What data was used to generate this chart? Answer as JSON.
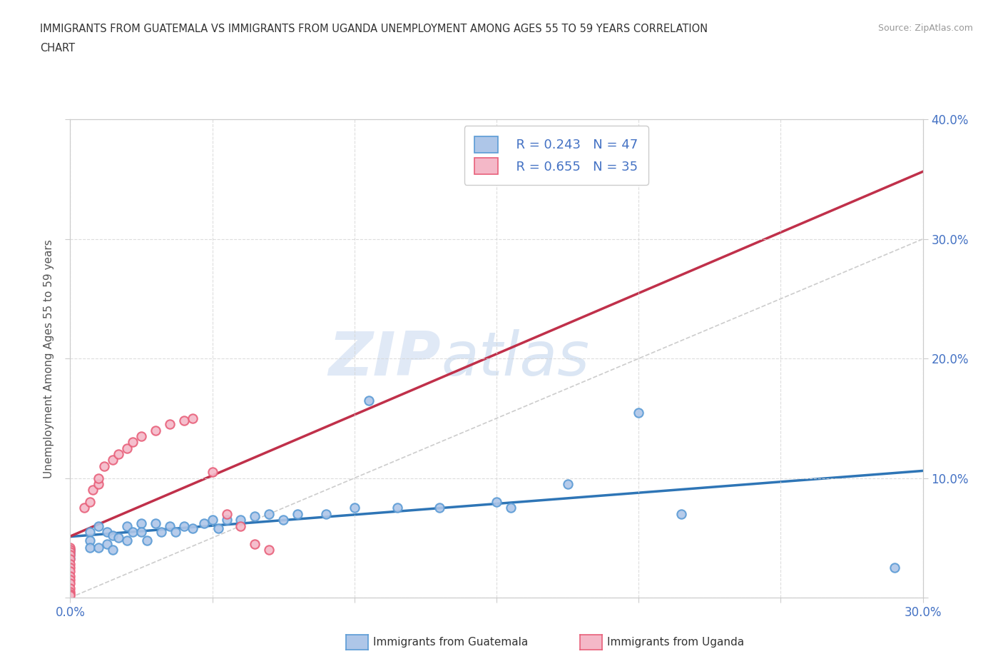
{
  "title_line1": "IMMIGRANTS FROM GUATEMALA VS IMMIGRANTS FROM UGANDA UNEMPLOYMENT AMONG AGES 55 TO 59 YEARS CORRELATION",
  "title_line2": "CHART",
  "source": "Source: ZipAtlas.com",
  "ylabel": "Unemployment Among Ages 55 to 59 years",
  "xlim": [
    0.0,
    0.3
  ],
  "ylim": [
    0.0,
    0.4
  ],
  "xticks": [
    0.0,
    0.05,
    0.1,
    0.15,
    0.2,
    0.25,
    0.3
  ],
  "yticks": [
    0.0,
    0.1,
    0.2,
    0.3,
    0.4
  ],
  "guatemala_color": "#aec6e8",
  "uganda_color": "#f4b8c8",
  "guatemala_edge": "#5b9bd5",
  "uganda_edge": "#e8607a",
  "trend_guatemala_color": "#2e75b6",
  "trend_uganda_color": "#c0304a",
  "diagonal_color": "#c0c0c0",
  "watermark_zip": "ZIP",
  "watermark_atlas": "atlas",
  "legend_r_guatemala": "R = 0.243",
  "legend_n_guatemala": "N = 47",
  "legend_r_uganda": "R = 0.655",
  "legend_n_uganda": "N = 35",
  "guatemala_x": [
    0.0,
    0.0,
    0.0,
    0.0,
    0.0,
    0.007,
    0.007,
    0.007,
    0.01,
    0.01,
    0.013,
    0.013,
    0.015,
    0.015,
    0.017,
    0.02,
    0.02,
    0.022,
    0.025,
    0.025,
    0.027,
    0.03,
    0.032,
    0.035,
    0.037,
    0.04,
    0.043,
    0.047,
    0.05,
    0.052,
    0.055,
    0.06,
    0.065,
    0.07,
    0.075,
    0.08,
    0.09,
    0.1,
    0.105,
    0.115,
    0.13,
    0.15,
    0.155,
    0.175,
    0.2,
    0.215,
    0.29
  ],
  "guatemala_y": [
    0.04,
    0.04,
    0.038,
    0.036,
    0.033,
    0.055,
    0.048,
    0.042,
    0.06,
    0.042,
    0.055,
    0.045,
    0.052,
    0.04,
    0.05,
    0.06,
    0.048,
    0.055,
    0.062,
    0.055,
    0.048,
    0.062,
    0.055,
    0.06,
    0.055,
    0.06,
    0.058,
    0.062,
    0.065,
    0.058,
    0.065,
    0.065,
    0.068,
    0.07,
    0.065,
    0.07,
    0.07,
    0.075,
    0.165,
    0.075,
    0.075,
    0.08,
    0.075,
    0.095,
    0.155,
    0.07,
    0.025
  ],
  "uganda_x": [
    0.0,
    0.0,
    0.0,
    0.0,
    0.0,
    0.0,
    0.0,
    0.0,
    0.0,
    0.0,
    0.0,
    0.0,
    0.0,
    0.0,
    0.0,
    0.005,
    0.007,
    0.008,
    0.01,
    0.01,
    0.012,
    0.015,
    0.017,
    0.02,
    0.022,
    0.025,
    0.03,
    0.035,
    0.04,
    0.043,
    0.05,
    0.055,
    0.06,
    0.065,
    0.07
  ],
  "uganda_y": [
    0.042,
    0.04,
    0.038,
    0.036,
    0.032,
    0.028,
    0.025,
    0.022,
    0.018,
    0.015,
    0.012,
    0.008,
    0.005,
    0.003,
    0.002,
    0.075,
    0.08,
    0.09,
    0.095,
    0.1,
    0.11,
    0.115,
    0.12,
    0.125,
    0.13,
    0.135,
    0.14,
    0.145,
    0.148,
    0.15,
    0.105,
    0.07,
    0.06,
    0.045,
    0.04
  ]
}
